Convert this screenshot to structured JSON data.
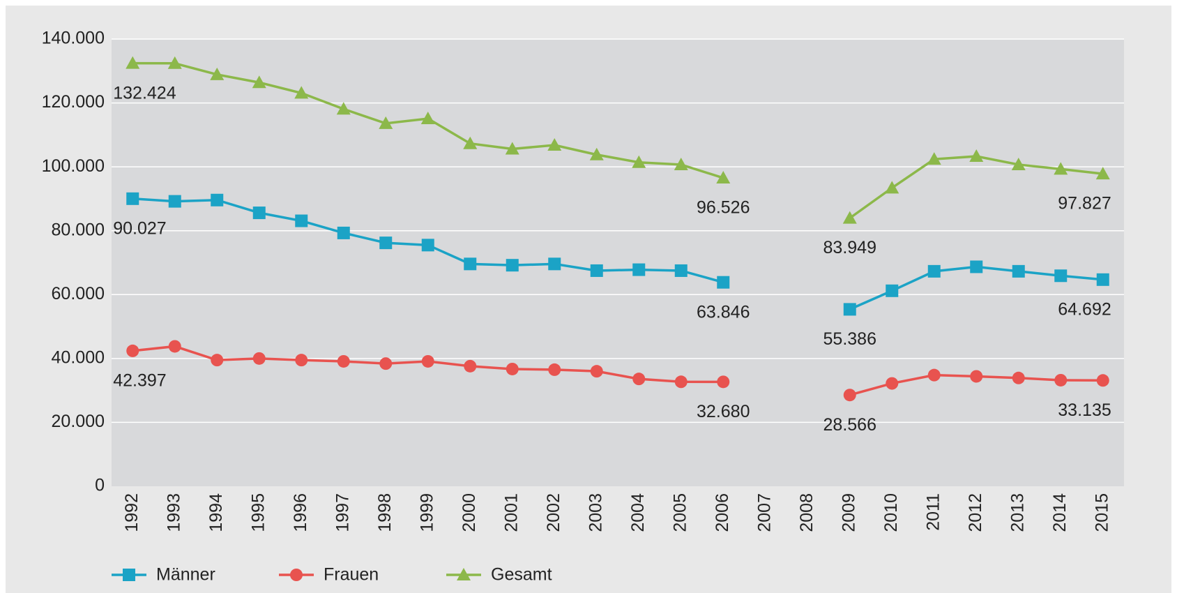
{
  "chart_data": {
    "type": "line",
    "categories": [
      "1992",
      "1993",
      "1994",
      "1995",
      "1996",
      "1997",
      "1998",
      "1999",
      "2000",
      "2001",
      "2002",
      "2003",
      "2004",
      "2005",
      "2006",
      "2007",
      "2008",
      "2009",
      "2010",
      "2011",
      "2012",
      "2013",
      "2014",
      "2015"
    ],
    "series": [
      {
        "name": "Männer",
        "color": "#1ba3c6",
        "marker": "square",
        "values": [
          90027,
          89200,
          89600,
          85600,
          83100,
          79300,
          76200,
          75500,
          69600,
          69200,
          69600,
          67500,
          67800,
          67500,
          63846,
          null,
          null,
          55386,
          61200,
          67300,
          68700,
          67300,
          65900,
          64692
        ],
        "value_labels": [
          "90.027",
          null,
          null,
          null,
          null,
          null,
          null,
          null,
          null,
          null,
          null,
          null,
          null,
          null,
          "63.846",
          null,
          null,
          "55.386",
          null,
          null,
          null,
          null,
          null,
          "64.692"
        ]
      },
      {
        "name": "Frauen",
        "color": "#e8534f",
        "marker": "circle",
        "values": [
          42397,
          43800,
          39500,
          40000,
          39500,
          39100,
          38400,
          39100,
          37600,
          36700,
          36500,
          36000,
          33600,
          32700,
          32680,
          null,
          null,
          28566,
          32200,
          34800,
          34400,
          33900,
          33200,
          33135
        ],
        "value_labels": [
          "42.397",
          null,
          null,
          null,
          null,
          null,
          null,
          null,
          null,
          null,
          null,
          null,
          null,
          null,
          "32.680",
          null,
          null,
          "28.566",
          null,
          null,
          null,
          null,
          null,
          "33.135"
        ]
      },
      {
        "name": "Gesamt",
        "color": "#8cb84a",
        "marker": "triangle",
        "values": [
          132424,
          132400,
          128900,
          126400,
          123100,
          118100,
          113600,
          115100,
          107300,
          105600,
          106800,
          103800,
          101400,
          100700,
          96526,
          null,
          null,
          83949,
          93400,
          102400,
          103300,
          100700,
          99300,
          97827
        ],
        "value_labels": [
          "132.424",
          null,
          null,
          null,
          null,
          null,
          null,
          null,
          null,
          null,
          null,
          null,
          null,
          null,
          "96.526",
          null,
          null,
          "83.949",
          null,
          null,
          null,
          null,
          null,
          "97.827"
        ]
      }
    ],
    "ylim": [
      0,
      140000
    ],
    "yticks": [
      0,
      {
        "value": 20000,
        "label": "20.000"
      },
      {
        "value": 40000,
        "label": "40.000"
      },
      {
        "value": 60000,
        "label": "60.000"
      },
      {
        "value": 80000,
        "label": "80.000"
      },
      {
        "value": 100000,
        "label": "100.000"
      },
      {
        "value": 120000,
        "label": "120.000"
      },
      {
        "value": 140000,
        "label": "140.000"
      }
    ],
    "grid": true,
    "legend": "bottom"
  }
}
